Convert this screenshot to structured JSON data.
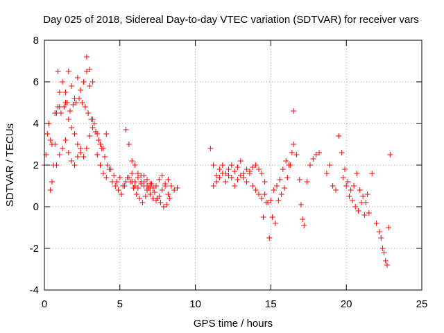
{
  "chart_data": {
    "type": "scatter",
    "title": "Day 025 of 2018, Sidereal Day-to-day VTEC variation (SDTVAR) for receiver vars",
    "xlabel": "GPS time / hours",
    "ylabel": "SDTVAR / TECUs",
    "xlim": [
      0,
      25
    ],
    "ylim": [
      -4,
      8
    ],
    "xticks": [
      0,
      5,
      10,
      15,
      20,
      25
    ],
    "yticks": [
      -4,
      -2,
      0,
      2,
      4,
      6,
      8
    ],
    "grid": true,
    "marker": "+",
    "series": [
      {
        "name": "SDTVAR",
        "color": "#ff0000",
        "segments": [
          {
            "x": [
              0.0,
              0.1,
              0.2,
              0.3,
              0.4
            ],
            "y": [
              2.0,
              2.5,
              3.5,
              4.0,
              3.2
            ]
          },
          {
            "x": [
              0.4,
              0.5,
              0.6,
              0.7,
              0.8,
              0.9,
              1.0
            ],
            "y": [
              0.8,
              1.2,
              2.0,
              3.0,
              4.5,
              6.5,
              4.8
            ]
          },
          {
            "x": [
              0.5,
              0.7,
              0.9,
              1.1,
              1.3,
              1.5,
              1.7,
              1.9,
              2.1,
              2.3,
              2.5,
              2.7,
              2.9,
              3.1,
              3.3,
              3.5,
              3.7,
              3.9,
              4.1
            ],
            "y": [
              3.0,
              4.5,
              4.8,
              4.5,
              4.8,
              5.0,
              4.6,
              4.9,
              5.0,
              5.2,
              5.0,
              4.8,
              4.5,
              4.2,
              4.0,
              3.5,
              3.0,
              2.8,
              3.5
            ]
          },
          {
            "x": [
              0.8,
              1.0,
              1.2,
              1.4,
              1.6,
              1.8,
              2.0,
              2.2,
              2.4
            ],
            "y": [
              2.0,
              2.5,
              2.8,
              3.2,
              2.6,
              2.2,
              2.0,
              2.4,
              2.8
            ]
          },
          {
            "x": [
              1.0,
              1.2,
              1.4,
              1.6,
              1.8,
              2.0,
              2.2,
              2.4,
              2.6,
              2.8,
              3.0,
              3.2
            ],
            "y": [
              5.5,
              6.0,
              5.0,
              4.2,
              3.8,
              3.5,
              3.0,
              2.6,
              2.4,
              2.8,
              3.4,
              3.8
            ]
          },
          {
            "x": [
              1.4,
              1.6,
              1.8,
              2.0,
              2.2,
              2.4,
              2.6,
              2.8,
              3.0,
              3.2
            ],
            "y": [
              5.5,
              6.5,
              5.8,
              5.2,
              6.2,
              5.6,
              6.0,
              7.2,
              6.6,
              6.0
            ]
          },
          {
            "x": [
              2.6,
              2.8,
              3.0,
              3.2,
              3.4,
              3.6,
              3.8,
              4.0,
              4.2,
              4.4,
              4.6,
              4.8,
              5.0,
              5.2,
              5.4,
              5.6,
              5.8,
              6.0,
              6.2,
              6.4,
              6.6,
              6.8,
              7.0
            ],
            "y": [
              6.0,
              6.5,
              5.8,
              4.2,
              3.6,
              3.2,
              2.8,
              2.4,
              2.0,
              1.8,
              1.5,
              1.2,
              1.4,
              1.0,
              1.2,
              1.4,
              1.2,
              1.0,
              0.9,
              1.1,
              1.2,
              1.0,
              0.9
            ]
          },
          {
            "x": [
              3.5,
              3.7,
              3.9,
              4.1,
              4.3,
              4.5,
              4.7,
              4.9,
              5.1,
              5.3,
              5.5,
              5.7,
              5.9,
              6.1,
              6.3
            ],
            "y": [
              2.5,
              2.0,
              1.6,
              1.4,
              1.8,
              1.2,
              1.0,
              0.8,
              0.6,
              1.0,
              1.4,
              1.2,
              0.9,
              0.6,
              0.4
            ]
          },
          {
            "x": [
              5.4,
              5.6,
              5.8,
              6.0,
              6.2,
              6.4,
              6.6,
              6.8,
              7.0,
              7.2,
              7.4,
              7.6,
              7.8,
              8.0,
              8.2,
              8.4,
              8.6,
              8.8
            ],
            "y": [
              3.7,
              3.0,
              2.2,
              2.0,
              1.6,
              1.5,
              1.0,
              0.8,
              0.6,
              0.4,
              0.3,
              0.5,
              0.8,
              1.1,
              1.3,
              1.0,
              0.8,
              0.9
            ]
          },
          {
            "x": [
              5.8,
              6.0,
              6.2,
              6.4,
              6.6,
              6.8,
              7.0,
              7.2,
              7.4,
              7.6,
              7.8,
              8.0,
              8.2
            ],
            "y": [
              1.6,
              1.2,
              1.4,
              1.2,
              1.5,
              1.3,
              1.1,
              0.9,
              1.0,
              1.3,
              1.5,
              1.0,
              0.6
            ]
          },
          {
            "x": [
              6.5,
              6.7,
              6.9,
              7.1,
              7.3,
              7.5,
              7.7,
              7.9,
              8.1,
              8.3
            ],
            "y": [
              0.2,
              0.5,
              0.9,
              1.1,
              0.7,
              0.4,
              0.2,
              0.0,
              0.1,
              0.4
            ]
          },
          {
            "x": [
              11.0,
              11.2,
              11.4,
              11.6,
              11.8,
              12.0,
              12.2,
              12.4,
              12.6,
              12.8,
              13.0,
              13.2,
              13.4,
              13.6,
              13.8,
              14.0,
              14.2,
              14.4,
              14.6
            ],
            "y": [
              2.8,
              2.0,
              1.5,
              1.8,
              2.0,
              1.6,
              1.8,
              2.0,
              1.7,
              1.9,
              2.2,
              1.6,
              1.8,
              1.7,
              1.9,
              2.0,
              1.8,
              1.6,
              1.2
            ]
          },
          {
            "x": [
              11.2,
              11.4,
              11.6,
              11.8,
              12.0,
              12.2,
              12.4,
              12.6,
              12.8,
              13.0,
              13.2,
              13.4,
              13.6,
              13.8,
              14.0,
              14.2,
              14.4,
              14.6,
              14.8
            ],
            "y": [
              1.0,
              1.2,
              1.4,
              1.6,
              1.2,
              1.5,
              1.4,
              1.0,
              1.3,
              1.5,
              1.4,
              1.2,
              1.6,
              1.0,
              0.8,
              0.6,
              0.4,
              0.6,
              0.2
            ]
          },
          {
            "x": [
              14.5,
              14.7,
              14.9,
              15.1,
              15.3,
              15.5,
              15.7,
              15.9,
              16.1,
              16.3,
              16.5,
              16.7
            ],
            "y": [
              -0.5,
              0.2,
              -1.5,
              -0.5,
              -0.8,
              0.3,
              0.6,
              0.9,
              1.4,
              2.0,
              3.0,
              2.5
            ]
          },
          {
            "x": [
              15.0,
              15.2,
              15.4,
              15.6,
              15.8,
              16.0,
              16.2,
              16.4
            ],
            "y": [
              0.3,
              0.8,
              1.0,
              1.3,
              1.8,
              2.2,
              2.0,
              2.6
            ]
          },
          {
            "x": [
              16.5
            ],
            "y": [
              4.6
            ]
          },
          {
            "x": [
              16.9,
              17.0,
              17.1,
              17.2
            ],
            "y": [
              1.3,
              0.1,
              -0.6,
              -0.9
            ]
          },
          {
            "x": [
              17.4,
              17.6,
              17.8,
              18.0,
              18.2
            ],
            "y": [
              1.2,
              2.0,
              2.3,
              2.5,
              2.6
            ]
          },
          {
            "x": [
              18.7,
              18.9,
              19.1,
              19.3,
              19.5,
              19.7,
              19.9,
              20.1,
              20.3,
              20.5,
              20.7,
              20.9,
              21.1,
              21.3,
              21.5,
              21.7
            ],
            "y": [
              1.6,
              2.0,
              1.0,
              0.8,
              3.4,
              2.6,
              1.8,
              1.2,
              0.8,
              1.0,
              1.6,
              0.8,
              0.5,
              0.2,
              -0.3,
              1.6
            ]
          },
          {
            "x": [
              19.8,
              20.0,
              20.2,
              20.4,
              20.6,
              20.8,
              21.0,
              21.2,
              21.4
            ],
            "y": [
              1.4,
              1.0,
              0.5,
              0.3,
              0.0,
              -0.2,
              0.2,
              -0.4,
              0.6
            ]
          },
          {
            "x": [
              22.0,
              22.2,
              22.4,
              22.6,
              22.8
            ],
            "y": [
              -0.8,
              -1.2,
              -2.0,
              -2.6,
              -1.0
            ]
          },
          {
            "x": [
              22.3,
              22.5,
              22.7,
              22.9
            ],
            "y": [
              -1.5,
              -2.2,
              -2.8,
              2.5
            ]
          }
        ]
      }
    ]
  }
}
